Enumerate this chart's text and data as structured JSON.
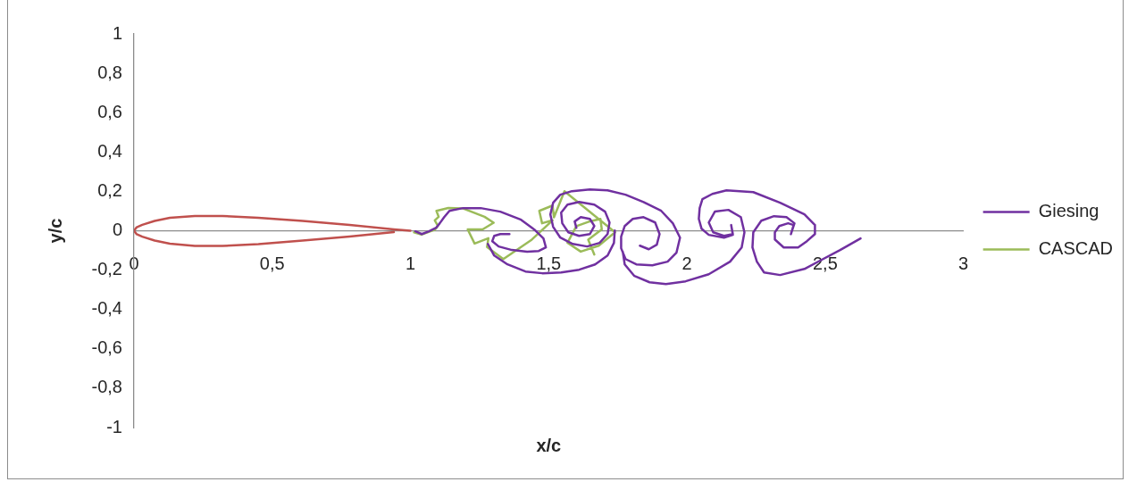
{
  "chart_data": {
    "type": "line",
    "xlabel": "x/c",
    "ylabel": "y/c",
    "xlim": [
      0,
      3
    ],
    "ylim": [
      -1,
      1
    ],
    "xticks": [
      0,
      {
        "value": 0.5,
        "label": "0,5"
      },
      1,
      {
        "value": 1.5,
        "label": "1,5"
      },
      2,
      {
        "value": 2.5,
        "label": "2,5"
      },
      3
    ],
    "yticks": [
      -1,
      {
        "value": -0.8,
        "label": "-0,8"
      },
      {
        "value": -0.6,
        "label": "-0,6"
      },
      {
        "value": -0.4,
        "label": "-0,4"
      },
      {
        "value": -0.2,
        "label": "-0,2"
      },
      0,
      {
        "value": 0.2,
        "label": "0,2"
      },
      {
        "value": 0.4,
        "label": "0,4"
      },
      {
        "value": 0.6,
        "label": "0,6"
      },
      {
        "value": 0.8,
        "label": "0,8"
      },
      1
    ],
    "legend": "right",
    "marker": "none",
    "series": [
      {
        "color": "#c0504d",
        "x": [
          1,
          0.94,
          0.78,
          0.61,
          0.45,
          0.32,
          0.22,
          0.13,
          0.075,
          0.03,
          0.01,
          0,
          0.01,
          0.03,
          0.075,
          0.13,
          0.22,
          0.32,
          0.45,
          0.61,
          0.78,
          0.94
        ],
        "values": [
          0,
          0.007,
          0.03,
          0.05,
          0.066,
          0.075,
          0.075,
          0.066,
          0.05,
          0.03,
          0.018,
          0,
          -0.018,
          -0.03,
          -0.05,
          -0.066,
          -0.077,
          -0.077,
          -0.068,
          -0.05,
          -0.03,
          -0.007
        ]
      },
      {
        "name": "Giesing",
        "color": "#7030a0",
        "x": [
          1.018,
          1.041,
          1.067,
          1.093,
          1.106,
          1.122,
          1.141,
          1.19,
          1.254,
          1.325,
          1.4,
          1.448,
          1.481,
          1.49,
          1.464,
          1.422,
          1.367,
          1.319,
          1.296,
          1.303,
          1.325,
          1.358,
          null,
          1.28,
          1.303,
          1.351,
          1.416,
          1.477,
          1.545,
          1.61,
          1.668,
          1.713,
          1.736,
          1.739,
          null,
          1.6,
          1.594,
          1.616,
          1.649,
          1.665,
          1.649,
          1.61,
          1.571,
          1.549,
          1.545,
          1.568,
          1.61,
          1.665,
          1.704,
          1.72,
          1.713,
          1.684,
          1.639,
          1.587,
          1.542,
          1.516,
          1.506,
          1.516,
          1.542,
          1.584,
          1.649,
          1.713,
          1.778,
          1.843,
          1.907,
          1.949,
          1.975,
          1.962,
          1.93,
          1.875,
          1.817,
          1.778,
          1.762,
          1.762,
          1.775,
          1.804,
          1.843,
          1.885,
          1.901,
          1.891,
          1.862,
          1.83,
          null,
          1.768,
          1.775,
          1.81,
          1.865,
          1.924,
          1.995,
          2.079,
          2.156,
          2.198,
          2.208,
          2.195,
          2.15,
          2.101,
          2.079,
          2.095,
          2.134,
          2.166,
          2.16,
          2.166,
          2.134,
          2.079,
          2.053,
          2.043,
          2.046,
          2.056,
          2.092,
          2.143,
          2.24,
          2.337,
          2.425,
          2.463,
          2.463,
          2.434,
          2.402,
          2.35,
          2.318,
          2.318,
          2.334,
          2.366,
          2.386,
          2.376,
          2.389,
          2.36,
          2.315,
          2.269,
          2.24,
          2.237,
          2.253,
          2.279,
          2.337,
          2.425,
          2.48,
          2.554,
          2.628
        ],
        "values": [
          -0.003,
          -0.017,
          -0.003,
          0.015,
          0.038,
          0.069,
          0.101,
          0.115,
          0.115,
          0.097,
          0.056,
          0.006,
          -0.039,
          -0.085,
          -0.103,
          -0.107,
          -0.098,
          -0.08,
          -0.053,
          -0.026,
          -0.017,
          -0.017,
          null,
          -0.067,
          -0.126,
          -0.171,
          -0.207,
          -0.216,
          -0.212,
          -0.198,
          -0.171,
          -0.126,
          -0.062,
          0.001,
          null,
          0.015,
          0.047,
          0.069,
          0.06,
          0.024,
          -0.017,
          -0.026,
          -0.008,
          0.038,
          0.092,
          0.133,
          0.146,
          0.133,
          0.097,
          0.042,
          -0.017,
          -0.062,
          -0.08,
          -0.067,
          -0.035,
          0.02,
          0.083,
          0.142,
          0.183,
          0.201,
          0.21,
          0.205,
          0.183,
          0.146,
          0.101,
          0.038,
          -0.035,
          -0.112,
          -0.157,
          -0.176,
          -0.171,
          -0.144,
          -0.089,
          -0.03,
          0.024,
          0.06,
          0.069,
          0.042,
          -0.017,
          -0.071,
          -0.094,
          -0.076,
          null,
          -0.107,
          -0.171,
          -0.23,
          -0.262,
          -0.271,
          -0.257,
          -0.221,
          -0.157,
          -0.085,
          -0.008,
          0.069,
          0.106,
          0.097,
          0.042,
          -0.008,
          -0.026,
          -0.017,
          0.029,
          -0.021,
          -0.035,
          -0.021,
          0.01,
          0.06,
          0.115,
          0.16,
          0.187,
          0.205,
          0.196,
          0.142,
          0.083,
          0.029,
          -0.017,
          -0.053,
          -0.085,
          -0.085,
          -0.044,
          -0.008,
          0.024,
          0.038,
          0.029,
          -0.017,
          0.038,
          0.069,
          0.074,
          0.051,
          -0.008,
          -0.085,
          -0.157,
          -0.212,
          -0.225,
          -0.194,
          -0.153,
          -0.098,
          -0.039
        ]
      },
      {
        "name": "CASCAD",
        "color": "#9bbb59",
        "x": [
          1.013,
          1.04,
          1.088,
          1.099,
          1.088,
          1.102,
          1.094,
          1.137,
          1.191,
          1.268,
          1.301,
          1.261,
          1.207,
          1.232,
          1.282,
          1.277,
          1.336,
          1.439,
          1.514,
          1.476,
          1.466,
          1.514,
          1.519,
          1.557,
          1.74,
          1.681,
          1.616,
          1.568,
          1.6,
          1.643,
          1.687,
          1.692,
          1.643,
          1.665
        ],
        "values": [
          -0.008,
          -0.02,
          0.005,
          0.025,
          0.053,
          0.071,
          0.101,
          0.116,
          0.113,
          0.071,
          0.041,
          0.007,
          0.007,
          -0.065,
          -0.038,
          -0.083,
          -0.144,
          -0.045,
          0.053,
          0.038,
          0.101,
          0.128,
          0.068,
          0.201,
          -0.008,
          -0.076,
          -0.106,
          -0.061,
          0.023,
          0.045,
          0.06,
          0.007,
          -0.045,
          -0.121
        ]
      }
    ]
  }
}
